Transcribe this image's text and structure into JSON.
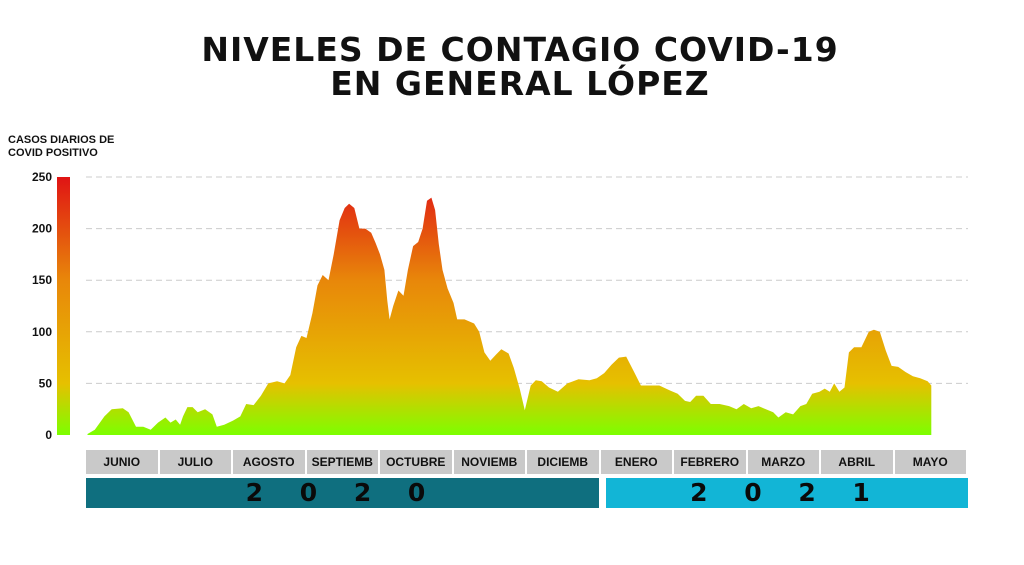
{
  "title_line1": "NIVELES DE CONTAGIO COVID-19",
  "title_line2": "EN GENERAL LÓPEZ",
  "colors": {
    "gradient_low": "#7cff00",
    "gradient_mid": "#e6c000",
    "gradient_high": "#e8870a",
    "gradient_top": "#e01414",
    "year_2020": "#0f6f7f",
    "year_2021": "#12b5d6",
    "month_bg": "#c9c9c9",
    "grid": "#cccccc"
  },
  "chart_data": {
    "type": "area",
    "title": "NIVELES DE CONTAGIO COVID-19 EN GENERAL LÓPEZ",
    "ylabel": "CASOS DIARIOS DE COVID POSITIVO",
    "xlabel": "",
    "ylim": [
      0,
      250
    ],
    "yticks": [
      0,
      50,
      100,
      150,
      200,
      250
    ],
    "grid": true,
    "x_unit": "month index (0 = start of JUNIO 2020, 12 = end of MAYO 2021)",
    "categories": [
      "JUNIO",
      "JULIO",
      "AGOSTO",
      "SEPTIEMB",
      "OCTUBRE",
      "NOVIEMB",
      "DICIEMB",
      "ENERO",
      "FEBRERO",
      "MARZO",
      "ABRIL",
      "MAYO"
    ],
    "years": [
      {
        "label": "2 0 2 0",
        "months": 7
      },
      {
        "label": "2 0 2 1",
        "months": 5
      }
    ],
    "series": [
      {
        "name": "Casos diarios",
        "points": [
          [
            0.02,
            1
          ],
          [
            0.12,
            5
          ],
          [
            0.25,
            18
          ],
          [
            0.35,
            25
          ],
          [
            0.5,
            26
          ],
          [
            0.58,
            22
          ],
          [
            0.68,
            8
          ],
          [
            0.78,
            8
          ],
          [
            0.88,
            5
          ],
          [
            0.98,
            12
          ],
          [
            1.08,
            17
          ],
          [
            1.15,
            12
          ],
          [
            1.22,
            15
          ],
          [
            1.28,
            10
          ],
          [
            1.32,
            18
          ],
          [
            1.38,
            27
          ],
          [
            1.45,
            27
          ],
          [
            1.52,
            22
          ],
          [
            1.62,
            25
          ],
          [
            1.72,
            20
          ],
          [
            1.78,
            8
          ],
          [
            1.88,
            10
          ],
          [
            2.0,
            14
          ],
          [
            2.1,
            18
          ],
          [
            2.18,
            30
          ],
          [
            2.28,
            29
          ],
          [
            2.38,
            38
          ],
          [
            2.48,
            50
          ],
          [
            2.6,
            52
          ],
          [
            2.7,
            50
          ],
          [
            2.78,
            58
          ],
          [
            2.86,
            85
          ],
          [
            2.93,
            96
          ],
          [
            3.0,
            94
          ],
          [
            3.08,
            118
          ],
          [
            3.15,
            145
          ],
          [
            3.22,
            155
          ],
          [
            3.3,
            150
          ],
          [
            3.37,
            175
          ],
          [
            3.45,
            208
          ],
          [
            3.52,
            220
          ],
          [
            3.58,
            224
          ],
          [
            3.65,
            220
          ],
          [
            3.72,
            200
          ],
          [
            3.8,
            200
          ],
          [
            3.88,
            196
          ],
          [
            3.94,
            186
          ],
          [
            4.0,
            175
          ],
          [
            4.06,
            160
          ],
          [
            4.1,
            130
          ],
          [
            4.13,
            112
          ],
          [
            4.18,
            125
          ],
          [
            4.25,
            140
          ],
          [
            4.32,
            135
          ],
          [
            4.38,
            160
          ],
          [
            4.45,
            183
          ],
          [
            4.52,
            187
          ],
          [
            4.58,
            200
          ],
          [
            4.64,
            227
          ],
          [
            4.7,
            230
          ],
          [
            4.75,
            218
          ],
          [
            4.8,
            185
          ],
          [
            4.85,
            160
          ],
          [
            4.92,
            142
          ],
          [
            5.0,
            128
          ],
          [
            5.05,
            112
          ],
          [
            5.15,
            112
          ],
          [
            5.28,
            108
          ],
          [
            5.35,
            100
          ],
          [
            5.42,
            80
          ],
          [
            5.5,
            72
          ],
          [
            5.58,
            78
          ],
          [
            5.65,
            83
          ],
          [
            5.75,
            79
          ],
          [
            5.82,
            65
          ],
          [
            5.9,
            45
          ],
          [
            5.97,
            24
          ],
          [
            6.05,
            48
          ],
          [
            6.12,
            53
          ],
          [
            6.2,
            52
          ],
          [
            6.3,
            46
          ],
          [
            6.42,
            42
          ],
          [
            6.55,
            50
          ],
          [
            6.7,
            54
          ],
          [
            6.85,
            53
          ],
          [
            6.95,
            55
          ],
          [
            7.05,
            60
          ],
          [
            7.15,
            68
          ],
          [
            7.25,
            75
          ],
          [
            7.35,
            76
          ],
          [
            7.45,
            62
          ],
          [
            7.55,
            48
          ],
          [
            7.68,
            48
          ],
          [
            7.8,
            48
          ],
          [
            7.95,
            43
          ],
          [
            8.05,
            40
          ],
          [
            8.15,
            33
          ],
          [
            8.22,
            32
          ],
          [
            8.3,
            38
          ],
          [
            8.4,
            38
          ],
          [
            8.5,
            30
          ],
          [
            8.62,
            30
          ],
          [
            8.75,
            28
          ],
          [
            8.85,
            25
          ],
          [
            8.95,
            30
          ],
          [
            9.05,
            26
          ],
          [
            9.15,
            28
          ],
          [
            9.25,
            25
          ],
          [
            9.35,
            22
          ],
          [
            9.42,
            17
          ],
          [
            9.52,
            22
          ],
          [
            9.62,
            20
          ],
          [
            9.72,
            28
          ],
          [
            9.8,
            30
          ],
          [
            9.88,
            40
          ],
          [
            9.98,
            42
          ],
          [
            10.05,
            45
          ],
          [
            10.12,
            42
          ],
          [
            10.18,
            50
          ],
          [
            10.25,
            42
          ],
          [
            10.32,
            46
          ],
          [
            10.38,
            80
          ],
          [
            10.45,
            85
          ],
          [
            10.55,
            85
          ],
          [
            10.65,
            100
          ],
          [
            10.72,
            102
          ],
          [
            10.8,
            100
          ],
          [
            10.88,
            82
          ],
          [
            10.96,
            67
          ],
          [
            11.05,
            66
          ],
          [
            11.15,
            61
          ],
          [
            11.25,
            57
          ],
          [
            11.35,
            55
          ],
          [
            11.45,
            52
          ],
          [
            11.5,
            48
          ]
        ]
      }
    ]
  }
}
